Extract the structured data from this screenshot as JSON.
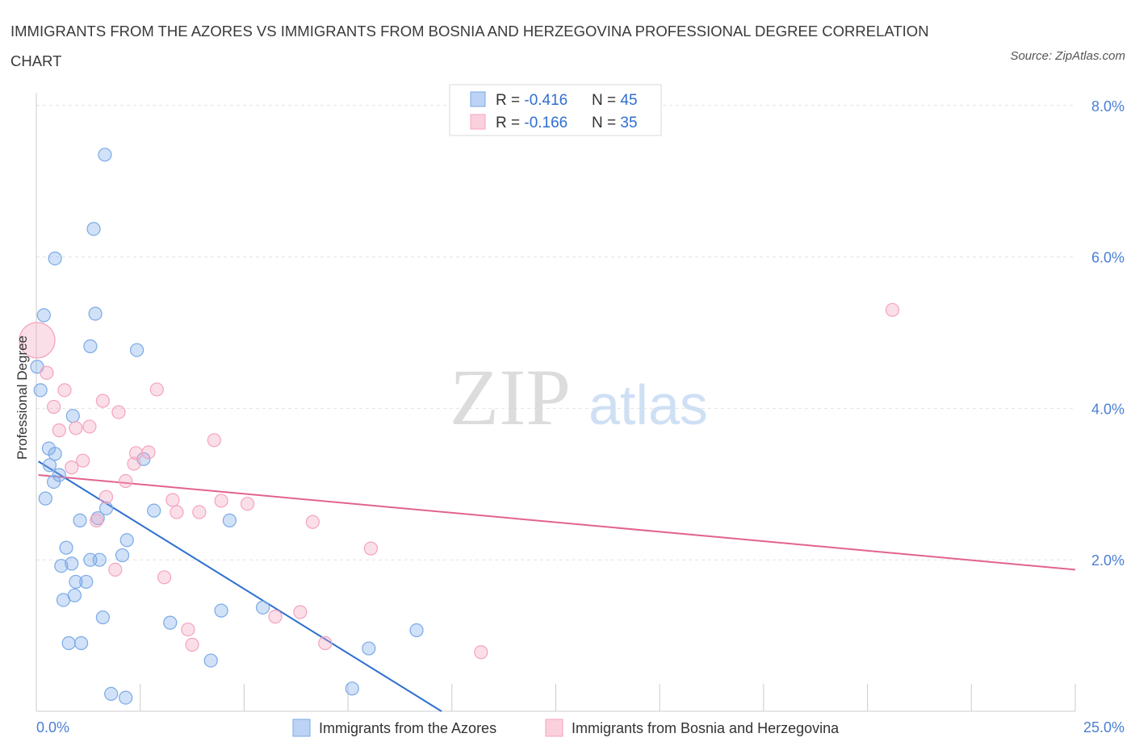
{
  "chart_data": {
    "type": "scatter",
    "title": "IMMIGRANTS FROM THE AZORES VS IMMIGRANTS FROM BOSNIA AND HERZEGOVINA PROFESSIONAL DEGREE CORRELATION CHART",
    "source": "Source: ZipAtlas.com",
    "xlabel": "",
    "ylabel": "Professional Degree",
    "xlim": [
      0,
      25
    ],
    "ylim": [
      0,
      8.2
    ],
    "x_tick_labels": [
      "0.0%",
      "25.0%"
    ],
    "y_ticks": [
      2,
      4,
      6,
      8
    ],
    "y_tick_labels": [
      "2.0%",
      "4.0%",
      "6.0%",
      "8.0%"
    ],
    "watermark": {
      "zip": "ZIP",
      "atlas": "atlas"
    },
    "legend_stats": [
      {
        "r_label": "R = ",
        "r_value": "-0.416",
        "n_label": "N = ",
        "n_value": "45"
      },
      {
        "r_label": "R = ",
        "r_value": "-0.166",
        "n_label": "N = ",
        "n_value": "35"
      }
    ],
    "series": [
      {
        "name": "Immigrants from the Azores",
        "color": "#7aaae8",
        "line_color": "#2e6fcf",
        "r": -0.416,
        "n": 45,
        "trend": {
          "x": [
            0.05,
            9.75
          ],
          "y": [
            3.3,
            0.0
          ]
        },
        "points": [
          [
            1.65,
            7.35
          ],
          [
            1.38,
            6.37
          ],
          [
            0.45,
            5.98
          ],
          [
            0.18,
            5.23
          ],
          [
            1.42,
            5.25
          ],
          [
            1.3,
            4.82
          ],
          [
            2.42,
            4.77
          ],
          [
            0.02,
            4.55
          ],
          [
            0.1,
            4.24
          ],
          [
            0.88,
            3.9
          ],
          [
            0.3,
            3.47
          ],
          [
            0.45,
            3.4
          ],
          [
            0.32,
            3.25
          ],
          [
            2.58,
            3.33
          ],
          [
            0.55,
            3.12
          ],
          [
            0.42,
            3.03
          ],
          [
            0.22,
            2.81
          ],
          [
            1.68,
            2.68
          ],
          [
            2.83,
            2.65
          ],
          [
            1.48,
            2.55
          ],
          [
            1.05,
            2.52
          ],
          [
            4.65,
            2.52
          ],
          [
            2.18,
            2.26
          ],
          [
            0.72,
            2.16
          ],
          [
            2.07,
            2.06
          ],
          [
            1.52,
            2.0
          ],
          [
            1.3,
            2.0
          ],
          [
            0.85,
            1.95
          ],
          [
            0.6,
            1.92
          ],
          [
            0.95,
            1.71
          ],
          [
            1.2,
            1.71
          ],
          [
            0.92,
            1.53
          ],
          [
            0.65,
            1.47
          ],
          [
            4.45,
            1.33
          ],
          [
            5.45,
            1.37
          ],
          [
            1.6,
            1.24
          ],
          [
            3.22,
            1.17
          ],
          [
            9.15,
            1.07
          ],
          [
            0.78,
            0.9
          ],
          [
            1.08,
            0.9
          ],
          [
            8.0,
            0.83
          ],
          [
            4.2,
            0.67
          ],
          [
            7.6,
            0.3
          ],
          [
            1.8,
            0.23
          ],
          [
            2.15,
            0.18
          ]
        ]
      },
      {
        "name": "Immigrants from Bosnia and Herzegovina",
        "color": "#f4a3be",
        "line_color": "#e2628e",
        "r": -0.166,
        "n": 35,
        "trend": {
          "x": [
            0.05,
            25
          ],
          "y": [
            3.12,
            1.87
          ]
        },
        "points": [
          [
            0.02,
            4.9
          ],
          [
            0.25,
            4.47
          ],
          [
            20.6,
            5.3
          ],
          [
            0.68,
            4.24
          ],
          [
            2.9,
            4.25
          ],
          [
            1.6,
            4.1
          ],
          [
            0.42,
            4.02
          ],
          [
            1.98,
            3.95
          ],
          [
            0.95,
            3.74
          ],
          [
            1.28,
            3.76
          ],
          [
            0.55,
            3.71
          ],
          [
            4.28,
            3.58
          ],
          [
            2.4,
            3.41
          ],
          [
            2.7,
            3.42
          ],
          [
            1.12,
            3.31
          ],
          [
            2.35,
            3.27
          ],
          [
            0.85,
            3.22
          ],
          [
            2.15,
            3.04
          ],
          [
            1.68,
            2.83
          ],
          [
            3.28,
            2.79
          ],
          [
            4.45,
            2.78
          ],
          [
            5.08,
            2.74
          ],
          [
            3.38,
            2.63
          ],
          [
            3.92,
            2.63
          ],
          [
            1.45,
            2.52
          ],
          [
            6.65,
            2.5
          ],
          [
            8.05,
            2.15
          ],
          [
            1.9,
            1.87
          ],
          [
            3.08,
            1.77
          ],
          [
            6.35,
            1.31
          ],
          [
            5.75,
            1.25
          ],
          [
            3.65,
            1.08
          ],
          [
            3.75,
            0.88
          ],
          [
            6.95,
            0.9
          ],
          [
            10.7,
            0.78
          ]
        ]
      }
    ]
  }
}
